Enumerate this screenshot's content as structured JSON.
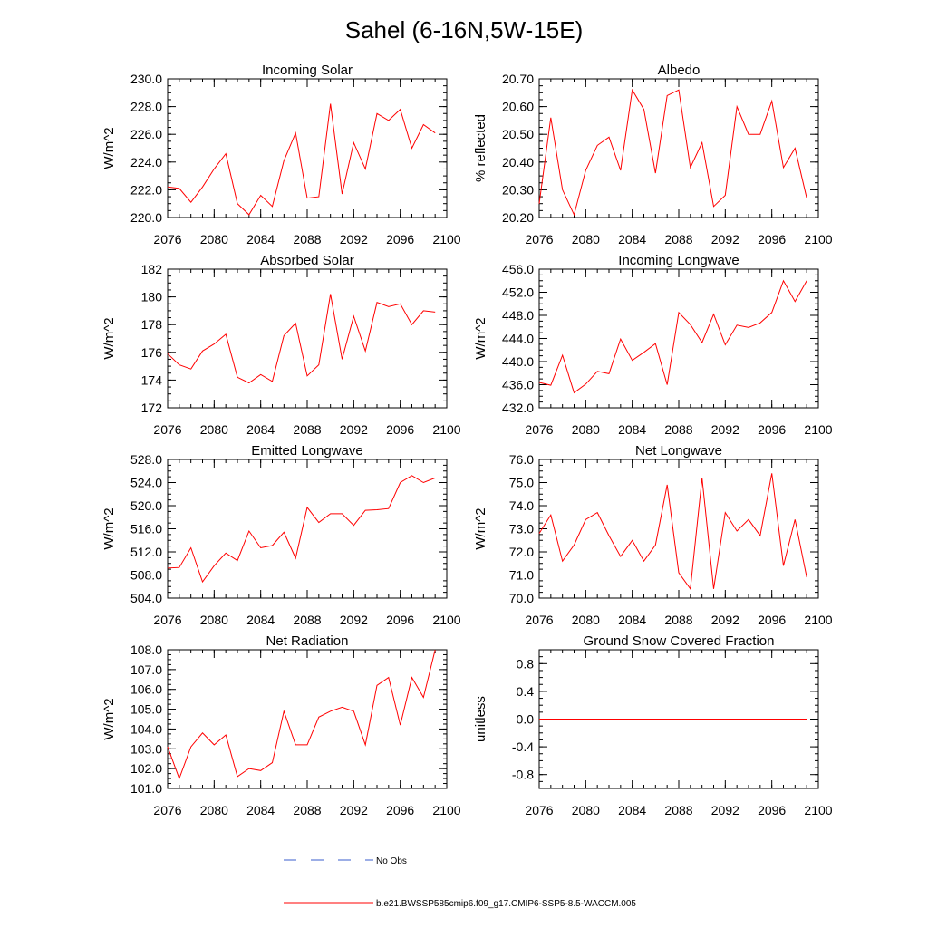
{
  "title": "Sahel (6-16N,5W-15E)",
  "legend": {
    "obs_label": "No Obs",
    "obs_color": "#3a5ccc",
    "model_label": "b.e21.BWSSP585cmip6.f09_g17.CMIP6-SSP5-8.5-WACCM.005",
    "model_color": "#ff0000"
  },
  "chart_data": [
    {
      "type": "line",
      "title": "Incoming Solar",
      "ylabel": "W/m^2",
      "xlim": [
        2076,
        2100
      ],
      "ylim": [
        220,
        230
      ],
      "xticks": [
        2076,
        2080,
        2084,
        2088,
        2092,
        2096,
        2100
      ],
      "yticks": [
        "220.0",
        "222.0",
        "224.0",
        "226.0",
        "228.0",
        "230.0"
      ],
      "x": [
        2076,
        2077,
        2078,
        2079,
        2080,
        2081,
        2082,
        2083,
        2084,
        2085,
        2086,
        2087,
        2088,
        2089,
        2090,
        2091,
        2092,
        2093,
        2094,
        2095,
        2096,
        2097,
        2098,
        2099
      ],
      "values": [
        222.2,
        222.1,
        221.1,
        222.2,
        223.5,
        224.6,
        221.0,
        220.2,
        221.6,
        220.8,
        224.1,
        226.1,
        221.4,
        221.5,
        228.2,
        221.7,
        225.4,
        223.5,
        227.5,
        227.0,
        227.8,
        225.0,
        226.7,
        226.1
      ]
    },
    {
      "type": "line",
      "title": "Albedo",
      "ylabel": "% reflected",
      "xlim": [
        2076,
        2100
      ],
      "ylim": [
        20.2,
        20.7
      ],
      "xticks": [
        2076,
        2080,
        2084,
        2088,
        2092,
        2096,
        2100
      ],
      "yticks": [
        "20.20",
        "20.30",
        "20.40",
        "20.50",
        "20.60",
        "20.70"
      ],
      "x": [
        2076,
        2077,
        2078,
        2079,
        2080,
        2081,
        2082,
        2083,
        2084,
        2085,
        2086,
        2087,
        2088,
        2089,
        2090,
        2091,
        2092,
        2093,
        2094,
        2095,
        2096,
        2097,
        2098,
        2099
      ],
      "values": [
        20.25,
        20.56,
        20.3,
        20.21,
        20.37,
        20.46,
        20.49,
        20.37,
        20.66,
        20.59,
        20.36,
        20.64,
        20.66,
        20.38,
        20.47,
        20.24,
        20.28,
        20.6,
        20.5,
        20.5,
        20.62,
        20.38,
        20.45,
        20.27
      ]
    },
    {
      "type": "line",
      "title": "Absorbed Solar",
      "ylabel": "W/m^2",
      "xlim": [
        2076,
        2100
      ],
      "ylim": [
        172,
        182
      ],
      "xticks": [
        2076,
        2080,
        2084,
        2088,
        2092,
        2096,
        2100
      ],
      "yticks": [
        "172",
        "174",
        "176",
        "178",
        "180",
        "182"
      ],
      "x": [
        2076,
        2077,
        2078,
        2079,
        2080,
        2081,
        2082,
        2083,
        2084,
        2085,
        2086,
        2087,
        2088,
        2089,
        2090,
        2091,
        2092,
        2093,
        2094,
        2095,
        2096,
        2097,
        2098,
        2099
      ],
      "values": [
        175.9,
        175.1,
        174.8,
        176.1,
        176.6,
        177.3,
        174.2,
        173.8,
        174.4,
        173.9,
        177.2,
        178.1,
        174.3,
        175.1,
        180.2,
        175.5,
        178.6,
        176.1,
        179.6,
        179.3,
        179.5,
        178.0,
        179.0,
        178.9
      ]
    },
    {
      "type": "line",
      "title": "Incoming Longwave",
      "ylabel": "W/m^2",
      "xlim": [
        2076,
        2100
      ],
      "ylim": [
        432,
        456
      ],
      "xticks": [
        2076,
        2080,
        2084,
        2088,
        2092,
        2096,
        2100
      ],
      "yticks": [
        "432.0",
        "436.0",
        "440.0",
        "444.0",
        "448.0",
        "452.0",
        "456.0"
      ],
      "x": [
        2076,
        2077,
        2078,
        2079,
        2080,
        2081,
        2082,
        2083,
        2084,
        2085,
        2086,
        2087,
        2088,
        2089,
        2090,
        2091,
        2092,
        2093,
        2094,
        2095,
        2096,
        2097,
        2098,
        2099
      ],
      "values": [
        436.4,
        435.9,
        441.1,
        434.6,
        436.1,
        438.3,
        437.9,
        443.9,
        440.2,
        441.6,
        443.1,
        436.0,
        448.5,
        446.4,
        443.3,
        448.2,
        442.9,
        446.3,
        445.9,
        446.7,
        448.5,
        454.0,
        450.4,
        454.0
      ]
    },
    {
      "type": "line",
      "title": "Emitted Longwave",
      "ylabel": "W/m^2",
      "xlim": [
        2076,
        2100
      ],
      "ylim": [
        504,
        528
      ],
      "xticks": [
        2076,
        2080,
        2084,
        2088,
        2092,
        2096,
        2100
      ],
      "yticks": [
        "504.0",
        "508.0",
        "512.0",
        "516.0",
        "520.0",
        "524.0",
        "528.0"
      ],
      "x": [
        2076,
        2077,
        2078,
        2079,
        2080,
        2081,
        2082,
        2083,
        2084,
        2085,
        2086,
        2087,
        2088,
        2089,
        2090,
        2091,
        2092,
        2093,
        2094,
        2095,
        2096,
        2097,
        2098,
        2099
      ],
      "values": [
        509.2,
        509.3,
        512.7,
        506.8,
        509.6,
        511.8,
        510.5,
        515.6,
        512.7,
        513.1,
        515.4,
        510.9,
        519.7,
        517.1,
        518.6,
        518.6,
        516.6,
        519.2,
        519.3,
        519.5,
        524.0,
        525.2,
        524.0,
        524.8
      ]
    },
    {
      "type": "line",
      "title": "Net Longwave",
      "ylabel": "W/m^2",
      "xlim": [
        2076,
        2100
      ],
      "ylim": [
        70,
        76
      ],
      "xticks": [
        2076,
        2080,
        2084,
        2088,
        2092,
        2096,
        2100
      ],
      "yticks": [
        "70.0",
        "71.0",
        "72.0",
        "73.0",
        "74.0",
        "75.0",
        "76.0"
      ],
      "x": [
        2076,
        2077,
        2078,
        2079,
        2080,
        2081,
        2082,
        2083,
        2084,
        2085,
        2086,
        2087,
        2088,
        2089,
        2090,
        2091,
        2092,
        2093,
        2094,
        2095,
        2096,
        2097,
        2098,
        2099
      ],
      "values": [
        72.8,
        73.6,
        71.6,
        72.3,
        73.4,
        73.7,
        72.7,
        71.8,
        72.5,
        71.6,
        72.3,
        74.9,
        71.1,
        70.4,
        75.2,
        70.4,
        73.7,
        72.9,
        73.4,
        72.7,
        75.4,
        71.4,
        73.4,
        70.9
      ]
    },
    {
      "type": "line",
      "title": "Net Radiation",
      "ylabel": "W/m^2",
      "xlim": [
        2076,
        2100
      ],
      "ylim": [
        101,
        108
      ],
      "xticks": [
        2076,
        2080,
        2084,
        2088,
        2092,
        2096,
        2100
      ],
      "yticks": [
        "101.0",
        "102.0",
        "103.0",
        "104.0",
        "105.0",
        "106.0",
        "107.0",
        "108.0"
      ],
      "x": [
        2076,
        2077,
        2078,
        2079,
        2080,
        2081,
        2082,
        2083,
        2084,
        2085,
        2086,
        2087,
        2088,
        2089,
        2090,
        2091,
        2092,
        2093,
        2094,
        2095,
        2096,
        2097,
        2098,
        2099
      ],
      "values": [
        103.1,
        101.5,
        103.1,
        103.8,
        103.2,
        103.7,
        101.6,
        102.0,
        101.9,
        102.3,
        104.9,
        103.2,
        103.2,
        104.6,
        104.9,
        105.1,
        104.9,
        103.2,
        106.2,
        106.6,
        104.2,
        106.6,
        105.6,
        108.0
      ]
    },
    {
      "type": "line",
      "title": "Ground Snow Covered Fraction",
      "ylabel": "unitless",
      "xlim": [
        2076,
        2100
      ],
      "ylim": [
        -1.0,
        1.0
      ],
      "xticks": [
        2076,
        2080,
        2084,
        2088,
        2092,
        2096,
        2100
      ],
      "yticks": [
        "-0.8",
        "-0.4",
        "0.0",
        "0.4",
        "0.8"
      ],
      "x": [
        2076,
        2077,
        2078,
        2079,
        2080,
        2081,
        2082,
        2083,
        2084,
        2085,
        2086,
        2087,
        2088,
        2089,
        2090,
        2091,
        2092,
        2093,
        2094,
        2095,
        2096,
        2097,
        2098,
        2099
      ],
      "values": [
        0,
        0,
        0,
        0,
        0,
        0,
        0,
        0,
        0,
        0,
        0,
        0,
        0,
        0,
        0,
        0,
        0,
        0,
        0,
        0,
        0,
        0,
        0,
        0
      ]
    }
  ]
}
